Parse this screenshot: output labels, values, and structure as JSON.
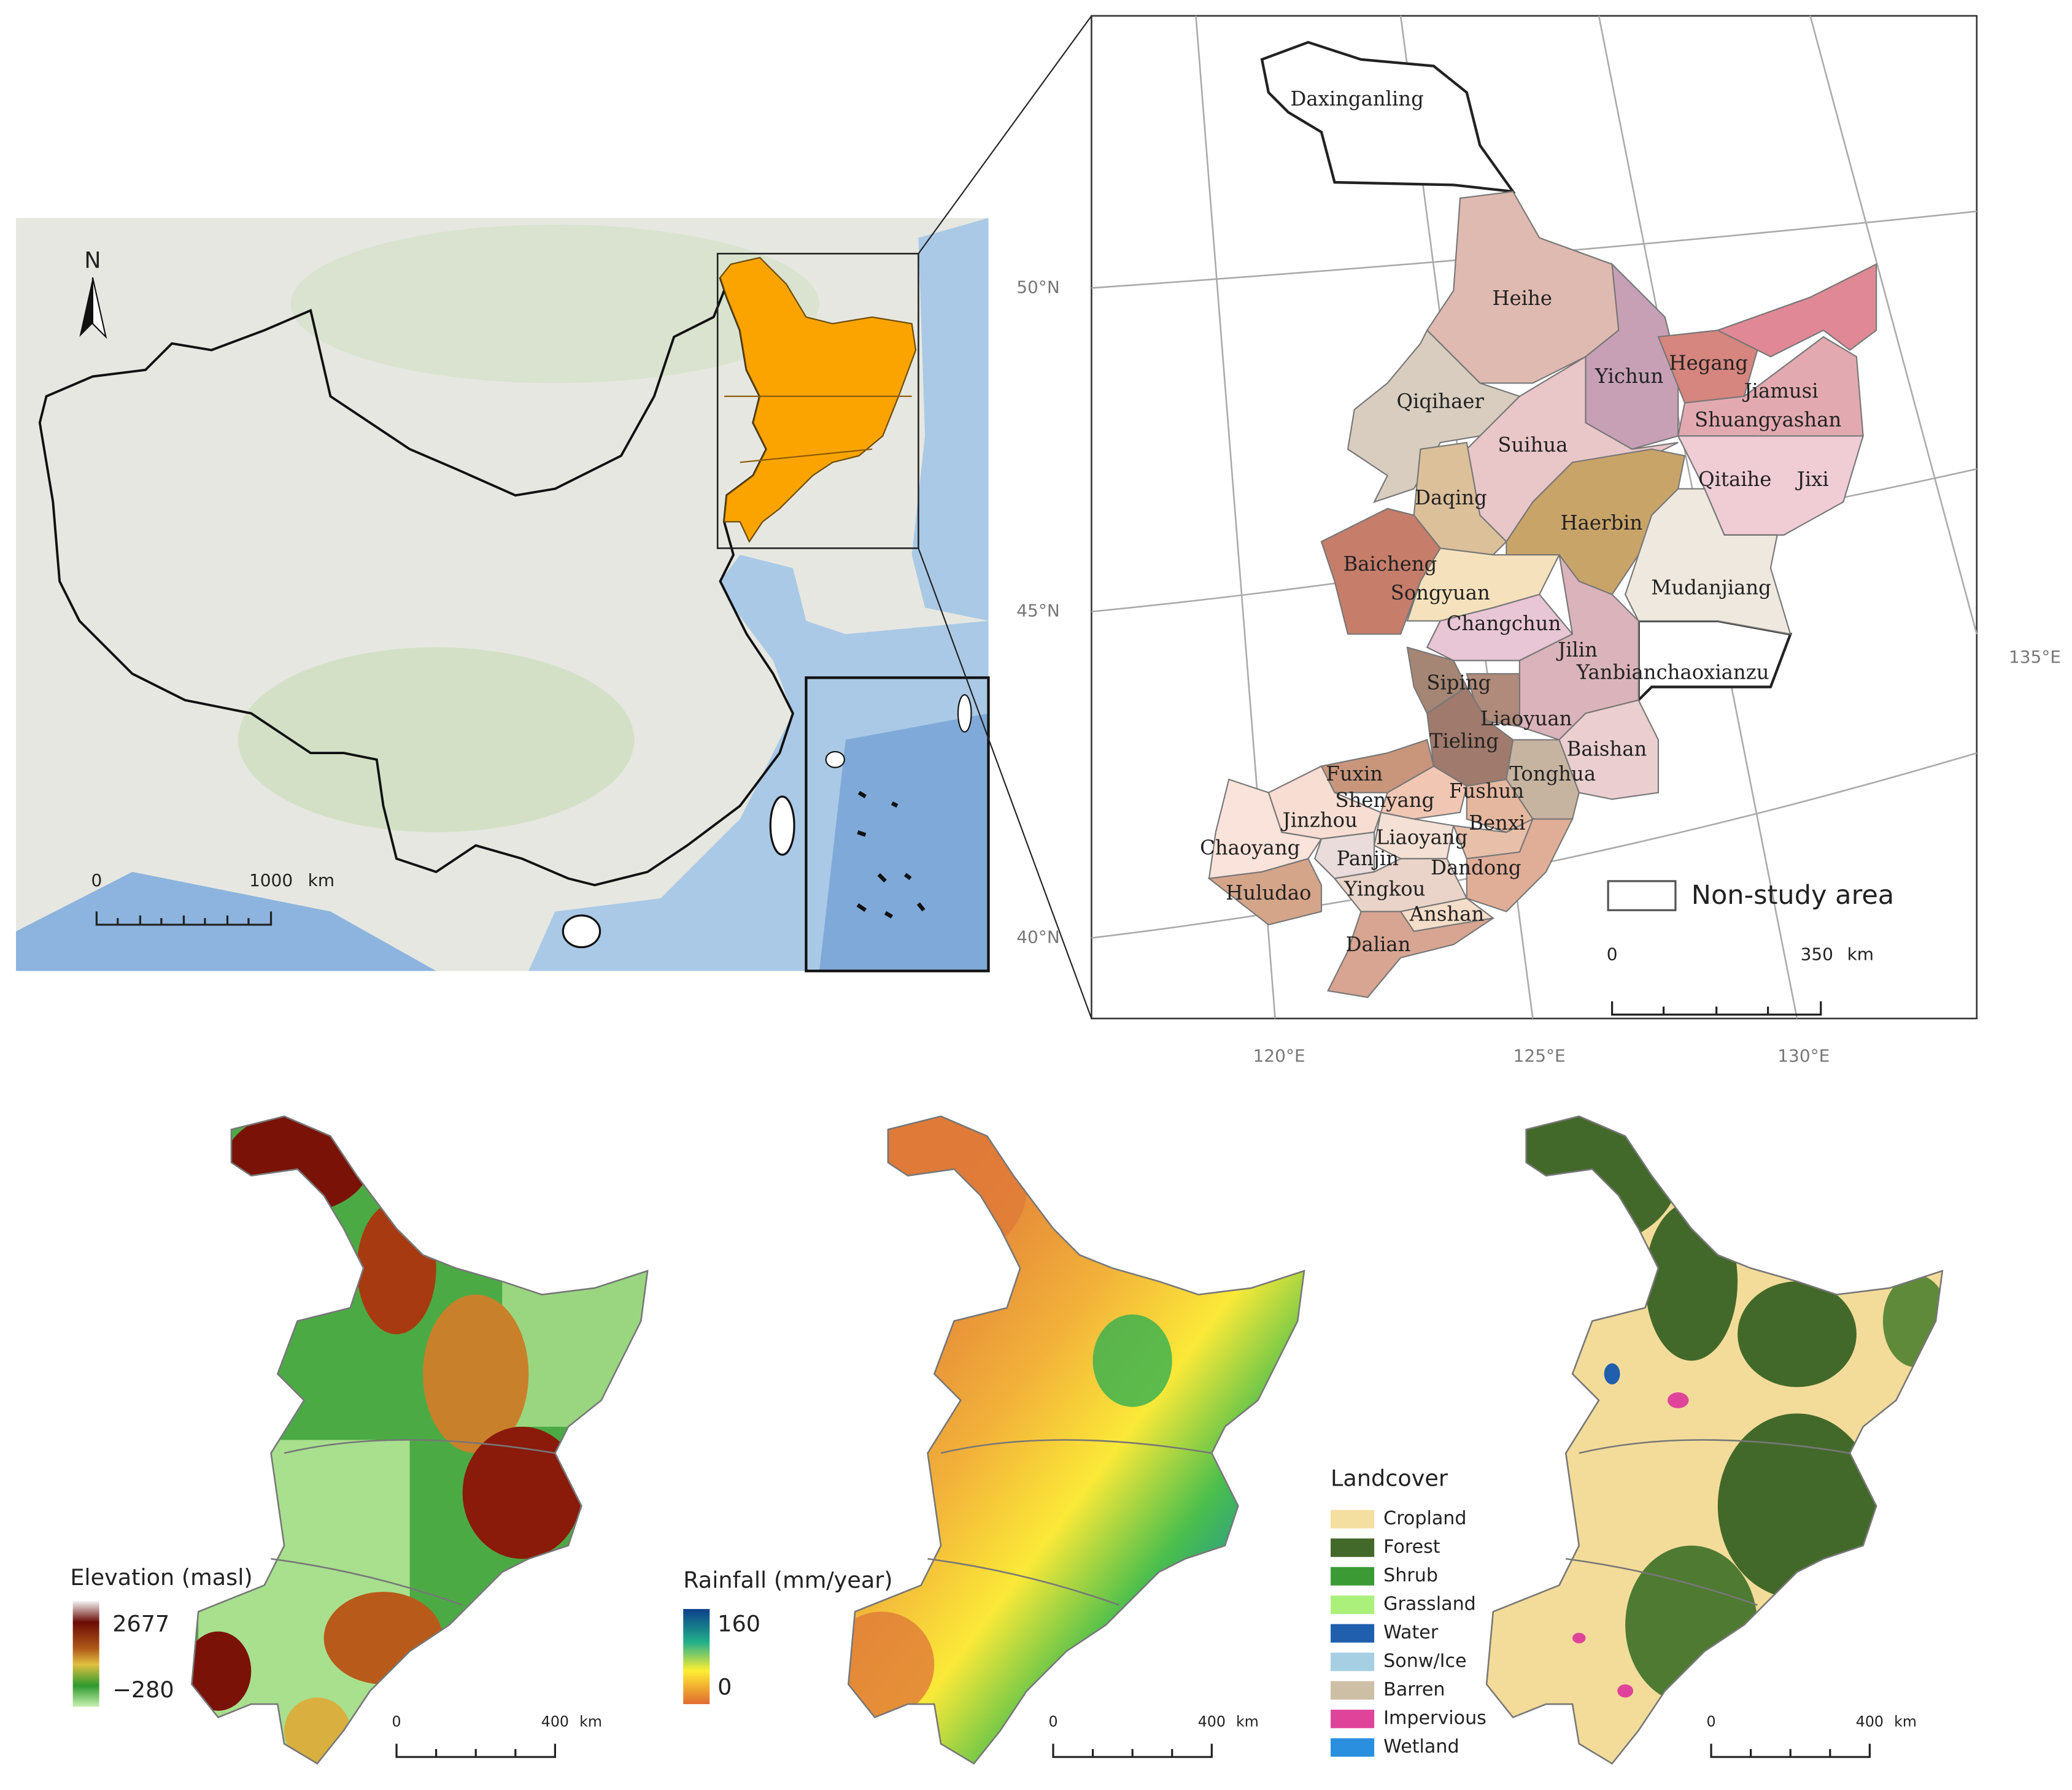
{
  "overview_map": {
    "north_label": "N",
    "scale_labels": [
      "0",
      "1000",
      "km"
    ]
  },
  "study_map": {
    "city_labels": [
      "Daxinganling",
      "Heihe",
      "Yichun",
      "Hegang",
      "Jiamusi",
      "Qiqihaer",
      "Shuangyashan",
      "Suihua",
      "Qitaihe",
      "Jixi",
      "Daqing",
      "Haerbin",
      "Baicheng",
      "Songyuan",
      "Mudanjiang",
      "Changchun",
      "Jilin",
      "Yanbianchaoxianzu",
      "Siping",
      "Liaoyuan",
      "Tieling",
      "Baishan",
      "Fuxin",
      "Tonghua",
      "Shenyang",
      "Fushun",
      "Jinzhou",
      "Benxi",
      "Chaoyang",
      "Liaoyang",
      "Panjin",
      "Dandong",
      "Huludao",
      "Yingkou",
      "Anshan",
      "Dalian"
    ],
    "lat_labels": [
      "50°N",
      "45°N",
      "40°N"
    ],
    "lon_labels": [
      "120°E",
      "125°E",
      "130°E",
      "135°E"
    ],
    "legend": "Non-study area",
    "scale_labels": [
      "0",
      "350",
      "km"
    ]
  },
  "elevation_map": {
    "legend_title": "Elevation (masl)",
    "max_label": "2677",
    "min_label": "−280",
    "scale_labels": [
      "0",
      "400",
      "km"
    ]
  },
  "rainfall_map": {
    "legend_title": "Rainfall (mm/year)",
    "max_label": "160",
    "min_label": "0",
    "scale_labels": [
      "0",
      "400",
      "km"
    ]
  },
  "landcover_map": {
    "legend_title": "Landcover",
    "classes": [
      {
        "label": "Cropland",
        "color": "#f5dfa0"
      },
      {
        "label": "Forest",
        "color": "#43692a"
      },
      {
        "label": "Shrub",
        "color": "#3c9a35"
      },
      {
        "label": "Grassland",
        "color": "#aaf07a"
      },
      {
        "label": "Water",
        "color": "#1f5fae"
      },
      {
        "label": "Sonw/Ice",
        "color": "#a6cfe3"
      },
      {
        "label": "Barren",
        "color": "#cdbfa6"
      },
      {
        "label": "Impervious",
        "color": "#e0449a"
      },
      {
        "label": "Wetland",
        "color": "#2b8fe0"
      }
    ],
    "scale_labels": [
      "0",
      "400",
      "km"
    ]
  }
}
